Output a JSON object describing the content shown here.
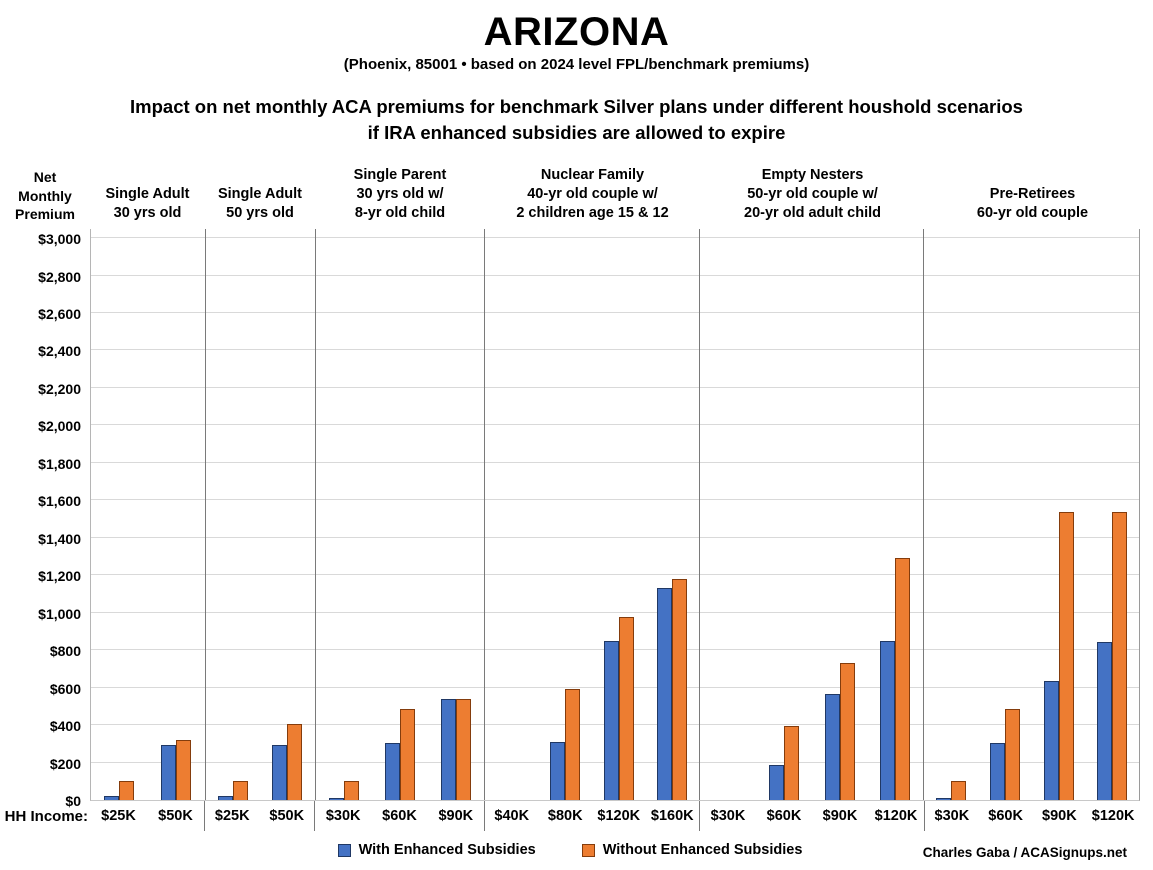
{
  "credit": "Charles Gaba / ACASignups.net",
  "x_axis_prefix": "HH Income:",
  "chart_data": {
    "type": "bar",
    "title": "ARIZONA",
    "subtitle": "(Phoenix, 85001 • based on 2024 level FPL/benchmark premiums)",
    "heading_lines": [
      "Impact on net monthly ACA premiums for benchmark Silver plans under different houshold scenarios",
      "if IRA enhanced subsidies are allowed to expire"
    ],
    "y_axis_title_lines": [
      "Net",
      "Monthly",
      "Premium"
    ],
    "ylabel": "Net Monthly Premium",
    "ylim": [
      0,
      3000
    ],
    "ytick_step": 200,
    "grid": true,
    "legend_position": "bottom",
    "currency_prefix": "$",
    "series": [
      {
        "key": "with_enhanced",
        "name": "With Enhanced Subsidies",
        "color": "#4472C4",
        "border_color": "#203864"
      },
      {
        "key": "without_enhanced",
        "name": "Without Enhanced Subsidies",
        "color": "#ED7D31",
        "border_color": "#843C0C"
      }
    ],
    "groups": [
      {
        "header_lines": [
          "Single Adult",
          "30 yrs old"
        ],
        "incomes": [
          "$25K",
          "$50K"
        ],
        "with_enhanced": [
          20,
          295
        ],
        "without_enhanced": [
          100,
          320
        ]
      },
      {
        "header_lines": [
          "Single Adult",
          "50 yrs old"
        ],
        "incomes": [
          "$25K",
          "$50K"
        ],
        "with_enhanced": [
          20,
          295
        ],
        "without_enhanced": [
          100,
          405
        ]
      },
      {
        "header_lines": [
          "Single Parent",
          "30 yrs old w/",
          "8-yr old child"
        ],
        "incomes": [
          "$30K",
          "$60K",
          "$90K"
        ],
        "with_enhanced": [
          5,
          305,
          540
        ],
        "without_enhanced": [
          100,
          485,
          540
        ]
      },
      {
        "header_lines": [
          "Nuclear Family",
          "40-yr old couple w/",
          "2 children age 15 & 12"
        ],
        "incomes": [
          "$40K",
          "$80K",
          "$120K",
          "$160K"
        ],
        "with_enhanced": [
          0,
          310,
          850,
          1130
        ],
        "without_enhanced": [
          0,
          590,
          975,
          1180
        ]
      },
      {
        "header_lines": [
          "Empty Nesters",
          "50-yr old couple w/",
          "20-yr old adult child"
        ],
        "incomes": [
          "$30K",
          "$60K",
          "$90K",
          "$120K"
        ],
        "with_enhanced": [
          0,
          185,
          565,
          850
        ],
        "without_enhanced": [
          0,
          395,
          730,
          1290
        ]
      },
      {
        "header_lines": [
          "Pre-Retirees",
          "60-yr old couple"
        ],
        "incomes": [
          "$30K",
          "$60K",
          "$90K",
          "$120K"
        ],
        "with_enhanced": [
          5,
          305,
          635,
          845
        ],
        "without_enhanced": [
          100,
          485,
          1540,
          1540
        ]
      }
    ]
  }
}
